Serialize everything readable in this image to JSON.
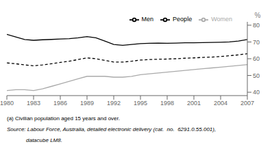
{
  "chart_data": {
    "type": "line",
    "x": [
      1980,
      1981,
      1982,
      1983,
      1984,
      1985,
      1986,
      1987,
      1988,
      1989,
      1990,
      1991,
      1992,
      1993,
      1994,
      1995,
      1996,
      1997,
      1998,
      1999,
      2000,
      2001,
      2002,
      2003,
      2004,
      2005,
      2006,
      2007
    ],
    "series": [
      {
        "name": "Men",
        "color": "#000000",
        "line_style": "solid",
        "values": [
          74.5,
          73.0,
          71.5,
          71.0,
          71.3,
          71.5,
          71.8,
          72.0,
          72.5,
          73.2,
          72.5,
          70.5,
          68.5,
          68.0,
          68.5,
          69.0,
          69.2,
          69.3,
          69.2,
          69.3,
          69.5,
          69.5,
          69.6,
          69.7,
          69.8,
          70.0,
          70.5,
          71.5
        ]
      },
      {
        "name": "Women",
        "color": "#aaaaaa",
        "line_style": "solid",
        "values": [
          41.0,
          41.5,
          41.5,
          41.0,
          42.0,
          43.5,
          45.0,
          46.5,
          48.0,
          49.5,
          49.5,
          49.5,
          49.0,
          49.0,
          49.5,
          50.5,
          51.0,
          51.5,
          52.0,
          52.5,
          53.0,
          53.5,
          54.0,
          54.5,
          55.0,
          55.5,
          56.0,
          56.5
        ]
      },
      {
        "name": "People",
        "color": "#000000",
        "line_style": "dashed",
        "values": [
          57.5,
          57.0,
          56.3,
          55.8,
          56.3,
          57.0,
          57.8,
          58.5,
          59.5,
          60.5,
          60.0,
          59.0,
          58.0,
          58.0,
          58.5,
          59.2,
          59.5,
          59.7,
          59.8,
          60.0,
          60.3,
          60.5,
          60.8,
          61.0,
          61.3,
          61.8,
          62.3,
          63.0
        ]
      }
    ],
    "xlim": [
      1980,
      2007
    ],
    "xticks": [
      1980,
      1983,
      1986,
      1989,
      1992,
      1995,
      1998,
      2001,
      2004,
      2007
    ],
    "ylim": [
      38,
      82
    ],
    "yticks": [
      40,
      50,
      60,
      70,
      80
    ],
    "ylabel": "%",
    "grid": false,
    "legend": "upper right",
    "annotations": [
      "(a) Civilian population aged 15 years and over.",
      "Source: Labour Force, Australia, detailed electronic delivery (cat.  no.  6291.0.55.001),",
      "datacube LM8."
    ]
  }
}
